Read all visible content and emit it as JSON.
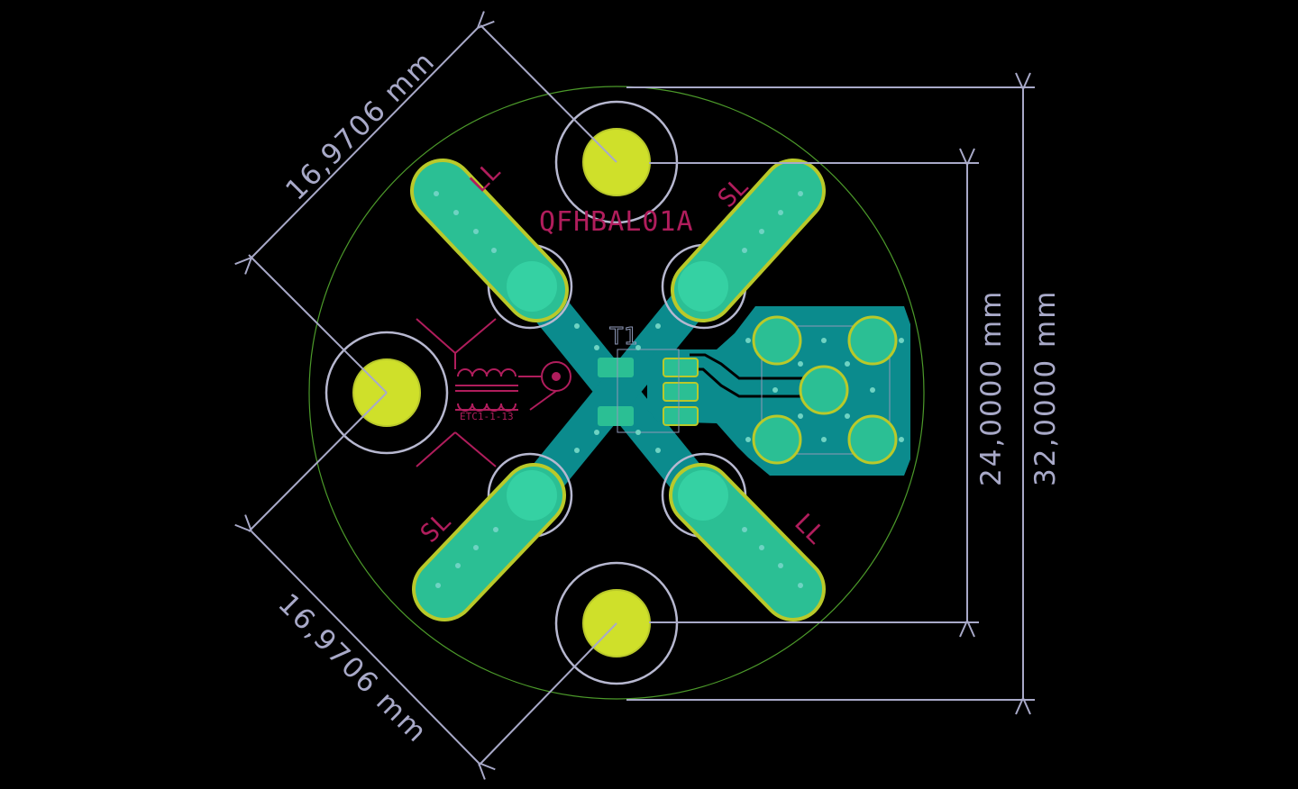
{
  "board": {
    "title": "QFHBAL01A",
    "ref": "T1",
    "part": "ETC1-1-13"
  },
  "labels": {
    "ll": "LL",
    "sl": "SL"
  },
  "dimensions": {
    "diag_upper": "16,9706 mm",
    "diag_lower": "16,9706 mm",
    "inner_vertical": "24,0000 mm",
    "outer_vertical": "32,0000 mm"
  },
  "colors": {
    "background": "#000000",
    "copper_fill": "#0b8b8d",
    "copper_pad": "#2bbf94",
    "pad_outline": "#b9c92a",
    "mounting_hole": "#cfe02a",
    "hole_ring": "#b7b8d0",
    "silkscreen": "#b01d5c",
    "board_outline": "#4c9a2a",
    "dimension": "#a8a9c8",
    "via": "#6fd3c3"
  },
  "icons": {
    "transformer": "transformer-symbol-icon",
    "coax": "coax-connector-icon"
  }
}
